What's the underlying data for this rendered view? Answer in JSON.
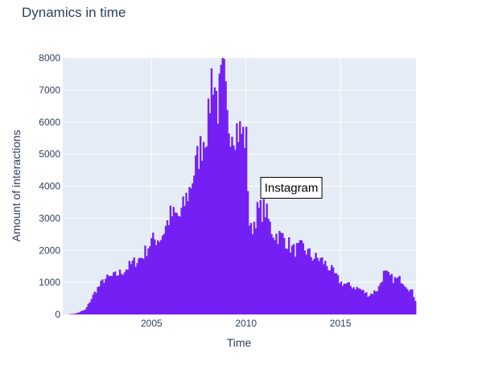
{
  "chart_data": {
    "type": "bar",
    "title": "Dynamics in time",
    "xlabel": "Time",
    "ylabel": "Amount of interactions",
    "ylim": [
      0,
      8000
    ],
    "xlim": [
      2000.3,
      2019.0
    ],
    "yticks": [
      0,
      1000,
      2000,
      3000,
      4000,
      5000,
      6000,
      7000,
      8000
    ],
    "xticks": [
      2005,
      2010,
      2015
    ],
    "grid": true,
    "color": "#7420f5",
    "plot_background": "#e5ecf6",
    "annotation": {
      "text": "Instagram",
      "x": 2012.4,
      "y": 3950
    },
    "series": [
      {
        "x": [
          2000.5,
          2001.0,
          2001.5,
          2002.0,
          2002.5,
          2003.0,
          2003.5,
          2004.0,
          2004.5,
          2005.0,
          2005.5,
          2006.0,
          2006.5,
          2007.0,
          2007.5,
          2008.0,
          2008.2,
          2008.5,
          2008.8,
          2009.0,
          2009.5,
          2010.0,
          2010.2,
          2010.6,
          2011.0,
          2011.3,
          2011.5,
          2012.0,
          2012.5,
          2013.0,
          2013.5,
          2014.0,
          2014.5,
          2015.0,
          2015.5,
          2016.0,
          2016.5,
          2017.0,
          2017.3,
          2017.8,
          2018.2,
          2018.5,
          2018.8,
          2019.0
        ],
        "y": [
          0,
          30,
          150,
          700,
          1100,
          1200,
          1350,
          1600,
          1800,
          2300,
          2400,
          3100,
          3050,
          3900,
          5000,
          6000,
          7700,
          6500,
          7600,
          6000,
          5800,
          5500,
          2500,
          3200,
          3300,
          2700,
          2500,
          2400,
          2000,
          2100,
          1800,
          1700,
          1400,
          1000,
          900,
          800,
          600,
          800,
          1300,
          1100,
          1100,
          900,
          700,
          400
        ]
      }
    ]
  }
}
